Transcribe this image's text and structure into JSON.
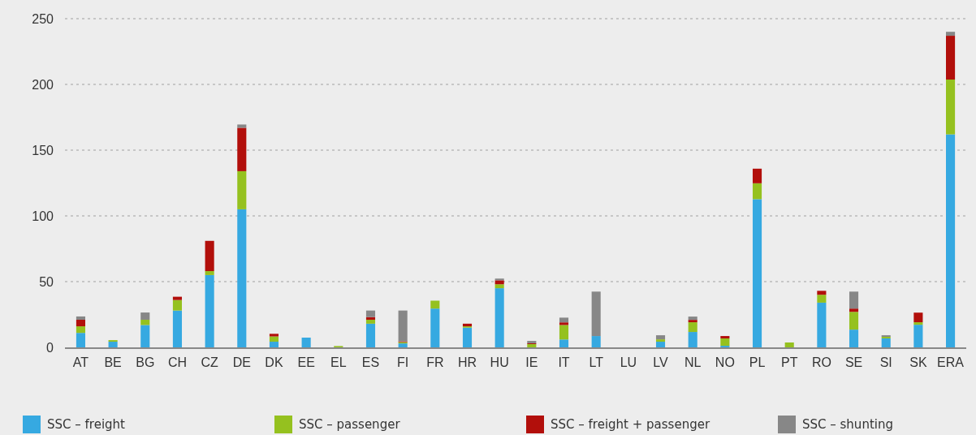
{
  "chart_data": {
    "type": "bar",
    "stacked": true,
    "categories": [
      "AT",
      "BE",
      "BG",
      "CH",
      "CZ",
      "DE",
      "DK",
      "EE",
      "EL",
      "ES",
      "FI",
      "FR",
      "HR",
      "HU",
      "IE",
      "IT",
      "LT",
      "LU",
      "LV",
      "NL",
      "NO",
      "PL",
      "PT",
      "RO",
      "SE",
      "SI",
      "SK",
      "ERA"
    ],
    "series": [
      {
        "name": "SSC – freight",
        "color": "#36a9e1",
        "values": [
          11,
          4.3,
          17,
          28,
          55,
          105,
          4.3,
          7.4,
          0,
          18,
          3,
          29.5,
          15,
          45,
          0,
          6,
          8.6,
          0,
          4.3,
          11.7,
          1.2,
          112.7,
          0,
          34,
          13.5,
          6.8,
          17.2,
          162
        ]
      },
      {
        "name": "SSC  – passenger",
        "color": "#95c11f",
        "values": [
          5,
          1.2,
          4,
          8,
          3,
          29,
          4,
          0,
          1,
          3,
          1,
          6,
          1,
          3,
          2.5,
          11,
          0,
          0,
          1.8,
          7.4,
          5.6,
          12.1,
          3.7,
          6,
          13.5,
          1.2,
          1.9,
          41.7
        ]
      },
      {
        "name": "SSC – freight + passenger",
        "color": "#b20f0b",
        "values": [
          5,
          0,
          0,
          2.5,
          23,
          33,
          2,
          0,
          0,
          2,
          0.6,
          0,
          2,
          3,
          0.6,
          2,
          0,
          0,
          0,
          1.8,
          1.8,
          11.1,
          0,
          3,
          2.5,
          0,
          7.3,
          33.3
        ]
      },
      {
        "name": "SSC – shunting",
        "color": "#878787",
        "values": [
          2.5,
          0,
          5.5,
          0,
          0,
          2.5,
          0,
          0,
          0,
          5,
          23.4,
          0,
          0,
          1.3,
          1.8,
          3.6,
          33.8,
          0,
          3.1,
          2.5,
          0,
          0,
          0,
          0,
          12.9,
          1.2,
          0,
          3
        ]
      }
    ],
    "ylim": [
      0,
      250
    ],
    "yticks": [
      0,
      50,
      100,
      150,
      200,
      250
    ],
    "grid": "y",
    "legend": "bottom"
  }
}
